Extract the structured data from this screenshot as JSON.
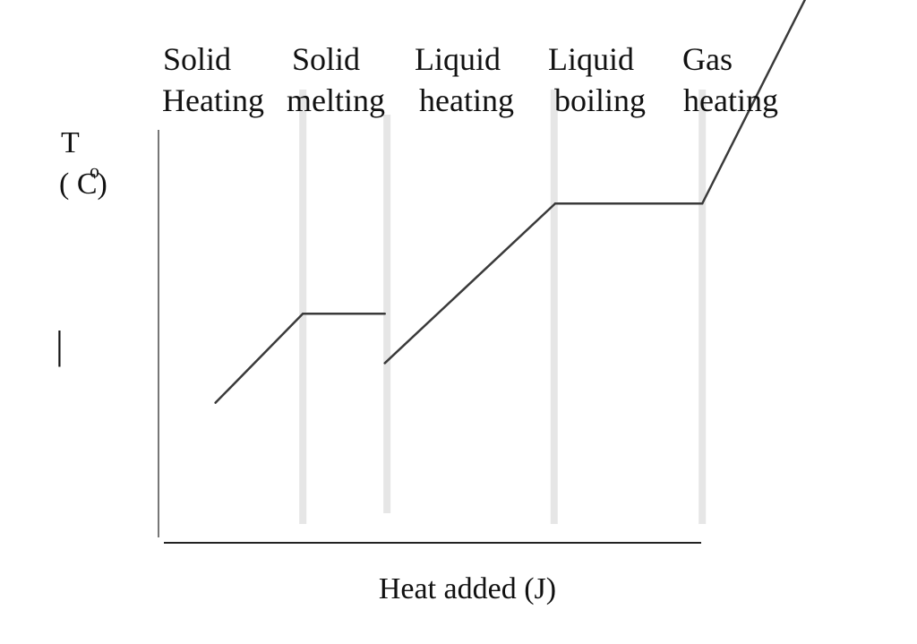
{
  "chart_data": {
    "type": "line",
    "title": "",
    "xlabel": "Heat added (J)",
    "ylabel_line1": "T",
    "ylabel_line2": "( C)",
    "ylabel_degree_glyph": "o",
    "ytick_mark": "|",
    "phases": [
      {
        "line1": "Solid",
        "line2": "Heating"
      },
      {
        "line1": "Solid",
        "line2": "melting"
      },
      {
        "line1": "Liquid",
        "line2": "heating"
      },
      {
        "line1": "Liquid",
        "line2": "boiling"
      },
      {
        "line1": "Gas",
        "line2": "heating"
      }
    ],
    "xlim": [
      0,
      100
    ],
    "ylim": [
      0,
      100
    ],
    "phase_boundaries_x": [
      26.6,
      42.1,
      72.9,
      100.2
    ],
    "segments": [
      {
        "name": "solid heating",
        "points": [
          [
            10.5,
            25.8
          ],
          [
            26.6,
            42.2
          ]
        ]
      },
      {
        "name": "solid melting",
        "points": [
          [
            26.6,
            42.2
          ],
          [
            41.7,
            42.2
          ]
        ]
      },
      {
        "name": "liquid heating",
        "points": [
          [
            41.7,
            33.1
          ],
          [
            73.1,
            62.5
          ]
        ]
      },
      {
        "name": "liquid boiling",
        "points": [
          [
            73.1,
            62.5
          ],
          [
            100.2,
            62.5
          ]
        ]
      },
      {
        "name": "gas heating",
        "points": [
          [
            100.2,
            62.5
          ],
          [
            120.2,
            102.2
          ]
        ]
      }
    ],
    "grid": false,
    "legend": "none",
    "colors": {
      "line": "#3a3a3a",
      "axis": "#222222",
      "band": "#e6e6e6"
    }
  }
}
